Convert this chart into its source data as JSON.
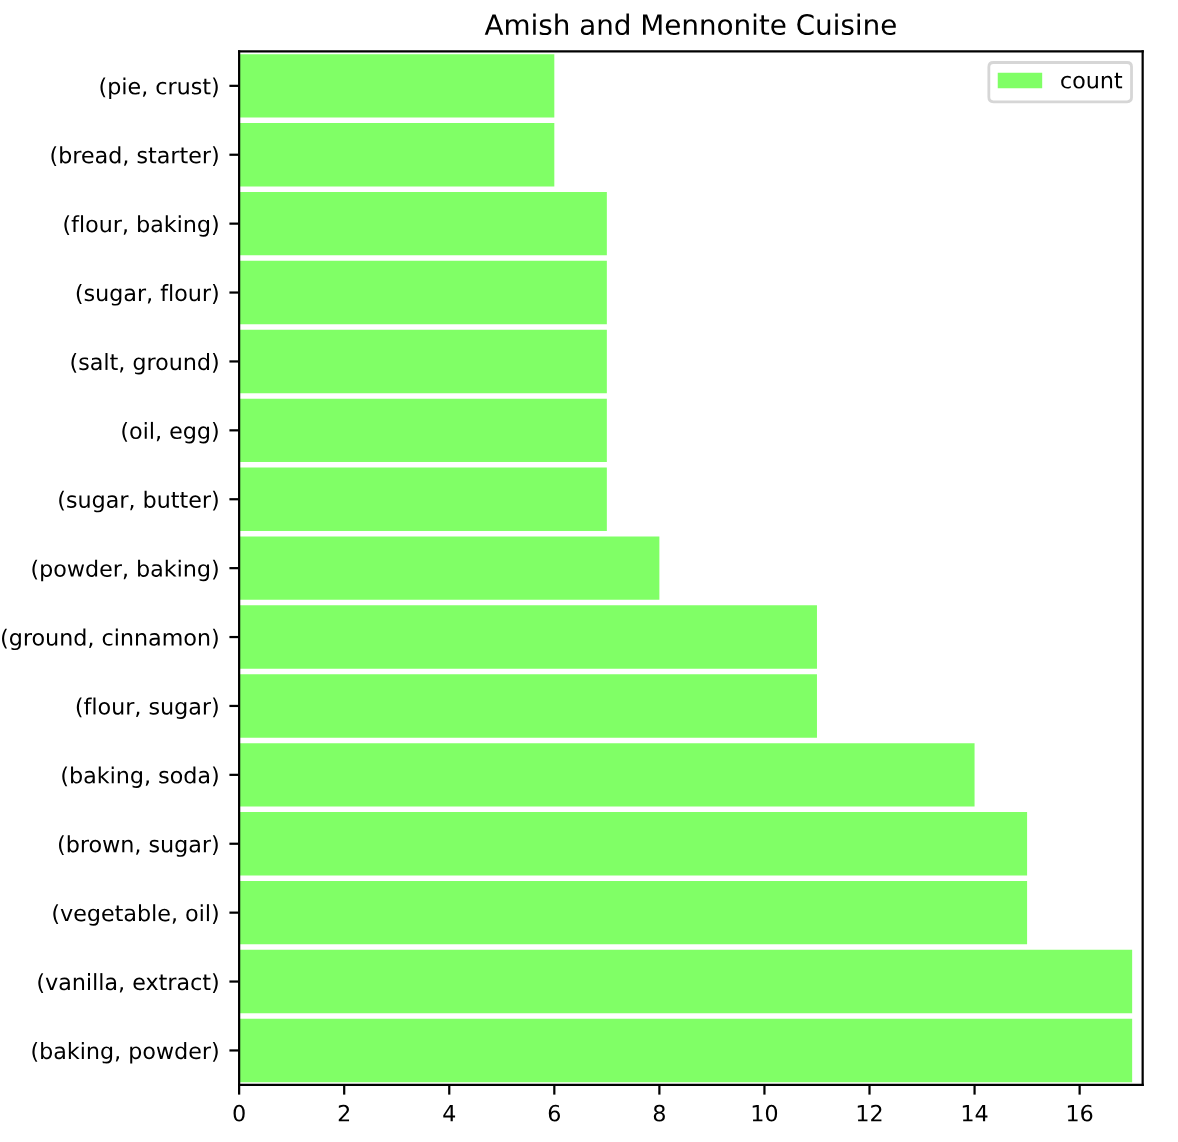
{
  "chart_data": {
    "type": "bar",
    "orientation": "horizontal",
    "title": "Amish and Mennonite Cuisine",
    "categories": [
      "(pie, crust)",
      "(bread, starter)",
      "(flour, baking)",
      "(sugar, flour)",
      "(salt, ground)",
      "(oil, egg)",
      "(sugar, butter)",
      "(powder, baking)",
      "(ground, cinnamon)",
      "(flour, sugar)",
      "(baking, soda)",
      "(brown, sugar)",
      "(vegetable, oil)",
      "(vanilla, extract)",
      "(baking, powder)"
    ],
    "series": [
      {
        "name": "count",
        "color": "#80ff66",
        "values": [
          6,
          6,
          7,
          7,
          7,
          7,
          7,
          8,
          11,
          11,
          14,
          15,
          15,
          17,
          17
        ]
      }
    ],
    "xlim": [
      0,
      17.2
    ],
    "xticks": [
      0,
      2,
      4,
      6,
      8,
      10,
      12,
      14,
      16
    ],
    "legend": "top right",
    "grid": false
  }
}
